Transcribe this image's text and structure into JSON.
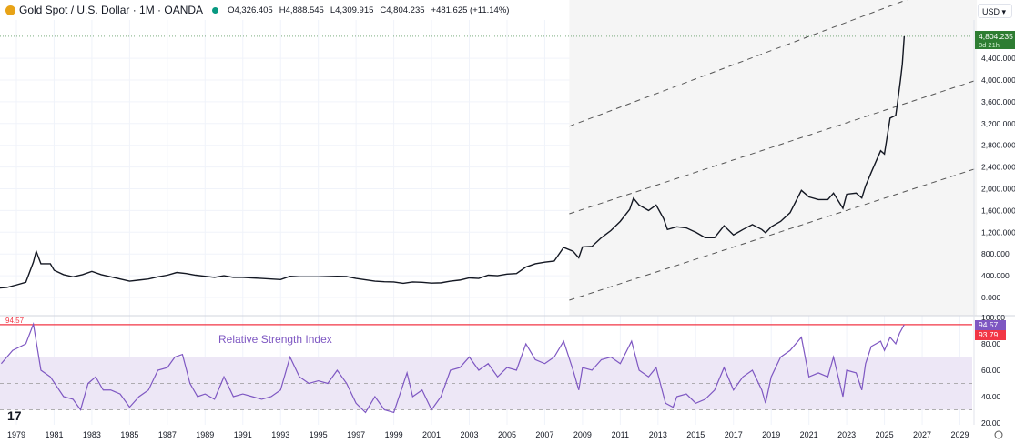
{
  "header": {
    "title": "Gold Spot / U.S. Dollar · 1M · OANDA",
    "open": "O4,326.405",
    "high": "H4,888.545",
    "low": "L4,309.915",
    "close": "C4,804.235",
    "change": "+481.625 (+11.14%)",
    "currency": "USD"
  },
  "colors": {
    "price_line": "#131722",
    "last_price_badge": "#2e7d32",
    "rsi_line": "#7e57c2",
    "rsi_band": "#ede7f6",
    "rsi_badge": "#7e57c2",
    "rsi_ma_badge": "#f23645",
    "channel": "#555555"
  },
  "chart_data": [
    {
      "type": "line",
      "title": "Gold Spot / U.S. Dollar · 1M · OANDA",
      "x_ticks": [
        "1979",
        "1981",
        "1983",
        "1985",
        "1987",
        "1989",
        "1991",
        "1993",
        "1995",
        "1997",
        "1999",
        "2001",
        "2003",
        "2005",
        "2007",
        "2009",
        "2011",
        "2013",
        "2015",
        "2017",
        "2019",
        "2021",
        "2023",
        "2025",
        "2027",
        "2029"
      ],
      "y_ticks": [
        "0.000",
        "400.000",
        "800.000",
        "1,200.000",
        "1,600.000",
        "2,000.000",
        "2,400.000",
        "2,800.000",
        "3,200.000",
        "3,600.000",
        "4,000.000",
        "4,400.000"
      ],
      "ylim": [
        -300,
        5000
      ],
      "last_price": "4,804.235",
      "countdown": "8d 21h",
      "series": [
        {
          "points": [
            [
              1978.1,
              175
            ],
            [
              1978.5,
              185
            ],
            [
              1979,
              230
            ],
            [
              1979.5,
              280
            ],
            [
              1979.9,
              650
            ],
            [
              1980.05,
              850
            ],
            [
              1980.3,
              620
            ],
            [
              1980.8,
              620
            ],
            [
              1981,
              500
            ],
            [
              1981.5,
              420
            ],
            [
              1982,
              380
            ],
            [
              1982.5,
              420
            ],
            [
              1983,
              480
            ],
            [
              1983.5,
              420
            ],
            [
              1984,
              380
            ],
            [
              1984.5,
              340
            ],
            [
              1985,
              300
            ],
            [
              1985.5,
              320
            ],
            [
              1986,
              340
            ],
            [
              1986.5,
              380
            ],
            [
              1987,
              410
            ],
            [
              1987.5,
              460
            ],
            [
              1988,
              440
            ],
            [
              1988.5,
              410
            ],
            [
              1989,
              390
            ],
            [
              1989.5,
              370
            ],
            [
              1990,
              400
            ],
            [
              1990.5,
              370
            ],
            [
              1991,
              370
            ],
            [
              1991.5,
              360
            ],
            [
              1992,
              350
            ],
            [
              1992.5,
              340
            ],
            [
              1993,
              330
            ],
            [
              1993.5,
              390
            ],
            [
              1994,
              380
            ],
            [
              1995,
              380
            ],
            [
              1996,
              390
            ],
            [
              1996.5,
              385
            ],
            [
              1997,
              350
            ],
            [
              1997.5,
              325
            ],
            [
              1998,
              300
            ],
            [
              1998.5,
              290
            ],
            [
              1999,
              285
            ],
            [
              1999.5,
              260
            ],
            [
              2000,
              285
            ],
            [
              2000.5,
              280
            ],
            [
              2001,
              265
            ],
            [
              2001.5,
              270
            ],
            [
              2002,
              300
            ],
            [
              2002.5,
              320
            ],
            [
              2003,
              360
            ],
            [
              2003.5,
              350
            ],
            [
              2004,
              410
            ],
            [
              2004.5,
              400
            ],
            [
              2005,
              430
            ],
            [
              2005.5,
              440
            ],
            [
              2006,
              560
            ],
            [
              2006.5,
              620
            ],
            [
              2007,
              650
            ],
            [
              2007.5,
              670
            ],
            [
              2008,
              920
            ],
            [
              2008.5,
              850
            ],
            [
              2008.8,
              730
            ],
            [
              2009,
              930
            ],
            [
              2009.5,
              940
            ],
            [
              2010,
              1100
            ],
            [
              2010.5,
              1230
            ],
            [
              2011,
              1400
            ],
            [
              2011.5,
              1620
            ],
            [
              2011.7,
              1825
            ],
            [
              2012,
              1700
            ],
            [
              2012.5,
              1600
            ],
            [
              2012.9,
              1700
            ],
            [
              2013.3,
              1450
            ],
            [
              2013.5,
              1250
            ],
            [
              2014,
              1300
            ],
            [
              2014.5,
              1280
            ],
            [
              2015,
              1200
            ],
            [
              2015.5,
              1100
            ],
            [
              2016,
              1100
            ],
            [
              2016.5,
              1320
            ],
            [
              2017,
              1150
            ],
            [
              2017.5,
              1250
            ],
            [
              2018,
              1340
            ],
            [
              2018.5,
              1250
            ],
            [
              2018.7,
              1190
            ],
            [
              2019,
              1300
            ],
            [
              2019.5,
              1400
            ],
            [
              2020,
              1560
            ],
            [
              2020.6,
              1970
            ],
            [
              2021,
              1850
            ],
            [
              2021.5,
              1800
            ],
            [
              2022,
              1800
            ],
            [
              2022.3,
              1920
            ],
            [
              2022.8,
              1640
            ],
            [
              2023,
              1900
            ],
            [
              2023.5,
              1920
            ],
            [
              2023.8,
              1830
            ],
            [
              2024,
              2050
            ],
            [
              2024.3,
              2300
            ],
            [
              2024.8,
              2700
            ],
            [
              2025,
              2640
            ],
            [
              2025.3,
              3300
            ],
            [
              2025.6,
              3350
            ],
            [
              2025.7,
              3600
            ],
            [
              2025.85,
              4000
            ],
            [
              2025.95,
              4300
            ],
            [
              2026.05,
              4804.235
            ]
          ]
        }
      ],
      "channel": {
        "start": 2008.3,
        "end": 2029.9,
        "upper": [
          3150,
          5960
        ],
        "middle": [
          1540,
          4000
        ],
        "lower": [
          -50,
          2377
        ]
      }
    },
    {
      "type": "line",
      "title": "Relative Strength Index",
      "y_ticks": [
        "20.00",
        "40.00",
        "60.00",
        "80.00",
        "100.00"
      ],
      "ylim": [
        17,
        101
      ],
      "bands": [
        30,
        50,
        70
      ],
      "last_value": "94.57",
      "ma_value": "93.79",
      "level_label": "94.57",
      "series": [
        {
          "points": [
            [
              1978.2,
              65
            ],
            [
              1978.8,
              75
            ],
            [
              1979.5,
              80
            ],
            [
              1979.9,
              95
            ],
            [
              1980.3,
              60
            ],
            [
              1980.8,
              55
            ],
            [
              1981.5,
              40
            ],
            [
              1982,
              38
            ],
            [
              1982.4,
              30
            ],
            [
              1982.8,
              50
            ],
            [
              1983.2,
              55
            ],
            [
              1983.6,
              45
            ],
            [
              1984,
              45
            ],
            [
              1984.5,
              42
            ],
            [
              1985,
              32
            ],
            [
              1985.5,
              40
            ],
            [
              1986,
              45
            ],
            [
              1986.5,
              60
            ],
            [
              1987,
              62
            ],
            [
              1987.4,
              70
            ],
            [
              1987.8,
              72
            ],
            [
              1988.2,
              50
            ],
            [
              1988.6,
              40
            ],
            [
              1989,
              42
            ],
            [
              1989.5,
              38
            ],
            [
              1990,
              55
            ],
            [
              1990.5,
              40
            ],
            [
              1991,
              42
            ],
            [
              1991.5,
              40
            ],
            [
              1992,
              38
            ],
            [
              1992.5,
              40
            ],
            [
              1993,
              45
            ],
            [
              1993.5,
              70
            ],
            [
              1994,
              55
            ],
            [
              1994.5,
              50
            ],
            [
              1995,
              52
            ],
            [
              1995.5,
              50
            ],
            [
              1996,
              60
            ],
            [
              1996.5,
              50
            ],
            [
              1997,
              35
            ],
            [
              1997.5,
              28
            ],
            [
              1998,
              40
            ],
            [
              1998.5,
              30
            ],
            [
              1999,
              28
            ],
            [
              1999.7,
              58
            ],
            [
              2000,
              40
            ],
            [
              2000.5,
              45
            ],
            [
              2001,
              30
            ],
            [
              2001.5,
              40
            ],
            [
              2002,
              60
            ],
            [
              2002.5,
              62
            ],
            [
              2003,
              70
            ],
            [
              2003.5,
              60
            ],
            [
              2004,
              65
            ],
            [
              2004.5,
              55
            ],
            [
              2005,
              62
            ],
            [
              2005.5,
              60
            ],
            [
              2006,
              80
            ],
            [
              2006.5,
              68
            ],
            [
              2007,
              65
            ],
            [
              2007.5,
              70
            ],
            [
              2008,
              82
            ],
            [
              2008.5,
              60
            ],
            [
              2008.8,
              45
            ],
            [
              2009,
              62
            ],
            [
              2009.5,
              60
            ],
            [
              2010,
              68
            ],
            [
              2010.5,
              70
            ],
            [
              2011,
              65
            ],
            [
              2011.6,
              82
            ],
            [
              2012,
              60
            ],
            [
              2012.5,
              55
            ],
            [
              2012.9,
              62
            ],
            [
              2013.4,
              35
            ],
            [
              2013.8,
              32
            ],
            [
              2014,
              40
            ],
            [
              2014.5,
              42
            ],
            [
              2015,
              35
            ],
            [
              2015.5,
              38
            ],
            [
              2016,
              45
            ],
            [
              2016.5,
              62
            ],
            [
              2017,
              45
            ],
            [
              2017.5,
              55
            ],
            [
              2018,
              60
            ],
            [
              2018.5,
              45
            ],
            [
              2018.7,
              35
            ],
            [
              2019,
              55
            ],
            [
              2019.5,
              70
            ],
            [
              2020,
              75
            ],
            [
              2020.6,
              85
            ],
            [
              2021,
              55
            ],
            [
              2021.5,
              58
            ],
            [
              2022,
              55
            ],
            [
              2022.3,
              70
            ],
            [
              2022.8,
              40
            ],
            [
              2023,
              60
            ],
            [
              2023.5,
              58
            ],
            [
              2023.8,
              45
            ],
            [
              2024,
              65
            ],
            [
              2024.3,
              78
            ],
            [
              2024.8,
              82
            ],
            [
              2025,
              75
            ],
            [
              2025.3,
              85
            ],
            [
              2025.6,
              80
            ],
            [
              2025.8,
              88
            ],
            [
              2026.05,
              94.57
            ]
          ]
        }
      ]
    }
  ]
}
